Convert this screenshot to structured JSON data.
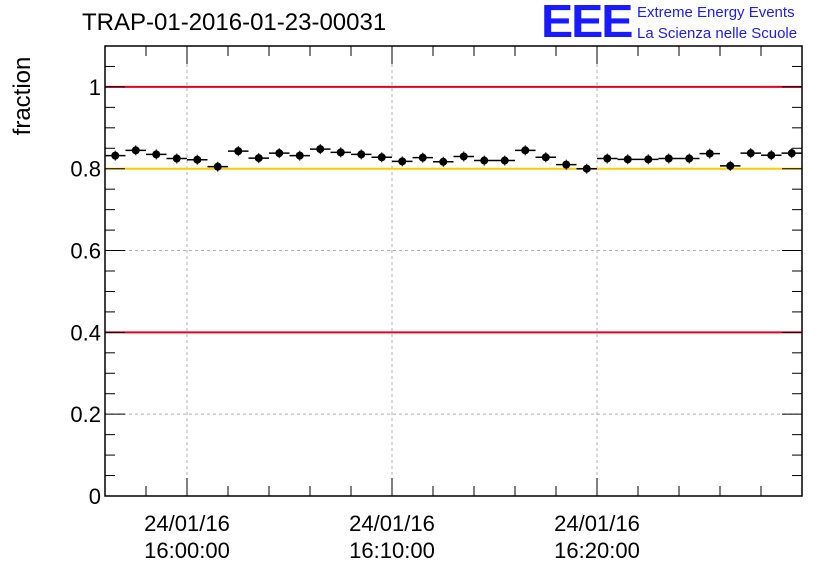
{
  "header": {
    "run_title": "TRAP-01-2016-01-23-00031"
  },
  "logo": {
    "mark": "EEE",
    "line1": "Extreme Energy Events",
    "line2": "La Scienza nelle Scuole",
    "color": "#1a1aff"
  },
  "chart_data": {
    "type": "scatter",
    "title": "TRAP-01-2016-01-23-00031",
    "xlabel": "",
    "ylabel": "fraction",
    "x_axis": "time",
    "ylim": [
      0,
      1.1
    ],
    "xlim": [
      "24/01/16 15:56:00",
      "24/01/16 16:30:00"
    ],
    "yticks": [
      0,
      0.2,
      0.4,
      0.6,
      0.8,
      1
    ],
    "ytick_labels": [
      "0",
      "0.2",
      "0.4",
      "0.6",
      "0.8",
      "1"
    ],
    "xticks": [
      {
        "time": "24/01/16 16:00:00",
        "date": "24/01/16",
        "clock": "16:00:00"
      },
      {
        "time": "24/01/16 16:10:00",
        "date": "24/01/16",
        "clock": "16:10:00"
      },
      {
        "time": "24/01/16 16:20:00",
        "date": "24/01/16",
        "clock": "16:20:00"
      }
    ],
    "grid": true,
    "reference_lines": [
      {
        "y": 1.0,
        "color": "#e8001c"
      },
      {
        "y": 0.8,
        "color": "#ffcc00"
      },
      {
        "y": 0.4,
        "color": "#e8001c"
      }
    ],
    "series": [
      {
        "color": "#000000",
        "points": [
          {
            "x": "24/01/16 15:56:30",
            "y": 0.832
          },
          {
            "x": "24/01/16 15:57:30",
            "y": 0.845
          },
          {
            "x": "24/01/16 15:58:30",
            "y": 0.835
          },
          {
            "x": "24/01/16 15:59:30",
            "y": 0.825
          },
          {
            "x": "24/01/16 16:00:30",
            "y": 0.822
          },
          {
            "x": "24/01/16 16:01:30",
            "y": 0.805
          },
          {
            "x": "24/01/16 16:02:30",
            "y": 0.843
          },
          {
            "x": "24/01/16 16:03:30",
            "y": 0.826
          },
          {
            "x": "24/01/16 16:04:30",
            "y": 0.838
          },
          {
            "x": "24/01/16 16:05:30",
            "y": 0.832
          },
          {
            "x": "24/01/16 16:06:30",
            "y": 0.848
          },
          {
            "x": "24/01/16 16:07:30",
            "y": 0.84
          },
          {
            "x": "24/01/16 16:08:30",
            "y": 0.835
          },
          {
            "x": "24/01/16 16:09:30",
            "y": 0.828
          },
          {
            "x": "24/01/16 16:10:30",
            "y": 0.818
          },
          {
            "x": "24/01/16 16:11:30",
            "y": 0.827
          },
          {
            "x": "24/01/16 16:12:30",
            "y": 0.817
          },
          {
            "x": "24/01/16 16:13:30",
            "y": 0.83
          },
          {
            "x": "24/01/16 16:14:30",
            "y": 0.82
          },
          {
            "x": "24/01/16 16:15:30",
            "y": 0.82
          },
          {
            "x": "24/01/16 16:16:30",
            "y": 0.845
          },
          {
            "x": "24/01/16 16:17:30",
            "y": 0.828
          },
          {
            "x": "24/01/16 16:18:30",
            "y": 0.81
          },
          {
            "x": "24/01/16 16:19:30",
            "y": 0.8
          },
          {
            "x": "24/01/16 16:20:30",
            "y": 0.825
          },
          {
            "x": "24/01/16 16:21:30",
            "y": 0.823
          },
          {
            "x": "24/01/16 16:22:30",
            "y": 0.823
          },
          {
            "x": "24/01/16 16:23:30",
            "y": 0.825
          },
          {
            "x": "24/01/16 16:24:30",
            "y": 0.825
          },
          {
            "x": "24/01/16 16:25:30",
            "y": 0.837
          },
          {
            "x": "24/01/16 16:26:30",
            "y": 0.807
          },
          {
            "x": "24/01/16 16:27:30",
            "y": 0.838
          },
          {
            "x": "24/01/16 16:28:30",
            "y": 0.833
          },
          {
            "x": "24/01/16 16:29:30",
            "y": 0.838
          }
        ]
      }
    ]
  }
}
